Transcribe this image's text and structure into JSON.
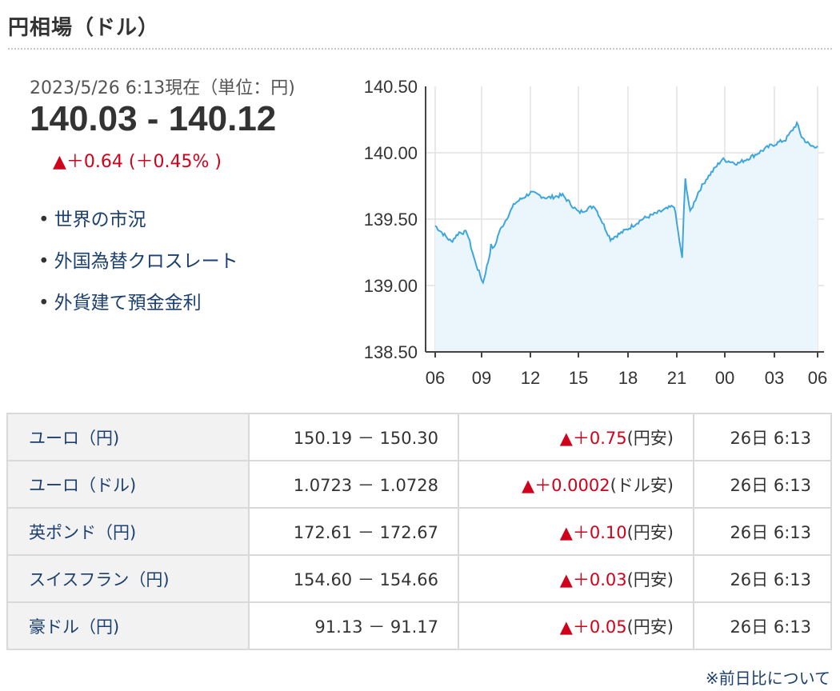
{
  "header": {
    "title": "円相場（ドル）"
  },
  "quote": {
    "timestamp": "2023/5/26 6:13現在（単位：円)",
    "range": "140.03 - 140.12",
    "change": "▲＋0.64 (＋0.45% )"
  },
  "links": [
    {
      "label": "世界の市況"
    },
    {
      "label": "外国為替クロスレート"
    },
    {
      "label": "外貨建て預金金利"
    }
  ],
  "colors": {
    "line": "#3ea6dd",
    "area": "#eaf5fc",
    "up": "#d0021b",
    "link": "#1b3f6e"
  },
  "chart_data": {
    "type": "area",
    "yticks": [
      "140.50",
      "140.00",
      "139.50",
      "139.00",
      "138.50"
    ],
    "xticks": [
      "06",
      "09",
      "12",
      "15",
      "18",
      "21",
      "00",
      "03",
      "06"
    ],
    "ylim": [
      138.5,
      140.5
    ],
    "x_hours": [
      0,
      1,
      1.5,
      2,
      2.5,
      3,
      3.4,
      3.5,
      3.7,
      4,
      5,
      6,
      7,
      8,
      9,
      10,
      11,
      12,
      13,
      14,
      15,
      15.5,
      15.6,
      15.7,
      16,
      16.5,
      17,
      18,
      19,
      20,
      21,
      22,
      22.7,
      23,
      23.3,
      23.6,
      24
    ],
    "values": [
      139.45,
      139.33,
      139.4,
      139.4,
      139.18,
      139.02,
      139.22,
      139.3,
      139.28,
      139.4,
      139.62,
      139.7,
      139.66,
      139.68,
      139.55,
      139.6,
      139.35,
      139.42,
      139.5,
      139.55,
      139.6,
      139.2,
      139.55,
      139.8,
      139.55,
      139.7,
      139.8,
      139.95,
      139.92,
      139.98,
      140.05,
      140.1,
      140.22,
      140.12,
      140.08,
      140.05,
      140.05
    ]
  },
  "table": {
    "rows": [
      {
        "pair": "ユーロ（円)",
        "range": "150.19 － 150.30",
        "change": "▲＋0.75",
        "suffix": "(円安)",
        "time": "26日 6:13"
      },
      {
        "pair": "ユーロ（ドル)",
        "range": "1.0723 － 1.0728",
        "change": "▲＋0.0002",
        "suffix": "(ドル安)",
        "time": "26日 6:13"
      },
      {
        "pair": "英ポンド（円)",
        "range": "172.61 － 172.67",
        "change": "▲＋0.10",
        "suffix": "(円安)",
        "time": "26日 6:13"
      },
      {
        "pair": "スイスフラン（円)",
        "range": "154.60 － 154.66",
        "change": "▲＋0.03",
        "suffix": "(円安)",
        "time": "26日 6:13"
      },
      {
        "pair": "豪ドル（円)",
        "range": "91.13 － 91.17",
        "change": "▲＋0.05",
        "suffix": "(円安)",
        "time": "26日 6:13"
      }
    ]
  },
  "footer": {
    "note": "※前日比について"
  }
}
